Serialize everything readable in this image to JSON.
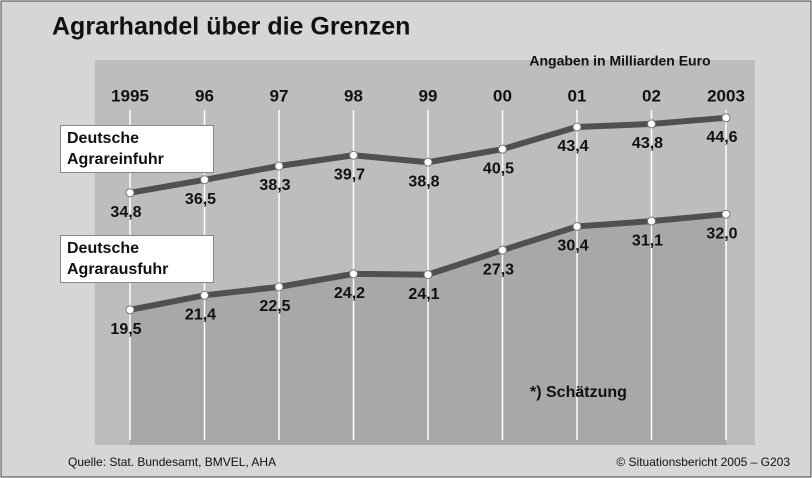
{
  "chart_data": {
    "type": "line",
    "title": "Agrarhandel über die Grenzen",
    "subtitle": "Angaben in Milliarden Euro",
    "categories": [
      "1995",
      "96",
      "97",
      "98",
      "99",
      "00",
      "01",
      "02",
      "2003"
    ],
    "series": [
      {
        "name": "Deutsche Agrareinfuhr",
        "color": "#505050",
        "values": [
          34.8,
          36.5,
          38.3,
          39.7,
          38.8,
          40.5,
          43.4,
          43.8,
          44.6
        ],
        "value_labels": [
          "34,8",
          "36,5",
          "38,3",
          "39,7",
          "38,8",
          "40,5",
          "43,4",
          "43,8",
          "44,6"
        ]
      },
      {
        "name": "Deutsche Agrarausfuhr",
        "color": "#505050",
        "values": [
          19.5,
          21.4,
          22.5,
          24.2,
          24.1,
          27.3,
          30.4,
          31.1,
          32.0
        ],
        "value_labels": [
          "19,5",
          "21,4",
          "22,5",
          "24,2",
          "24,1",
          "27,3",
          "30,4",
          "31,1",
          "32,0"
        ]
      }
    ],
    "note": "*) Schätzung",
    "source": "Quelle: Stat. Bundesamt, BMVEL, AHA",
    "credit": "© Situationsbericht 2005 – G203"
  }
}
